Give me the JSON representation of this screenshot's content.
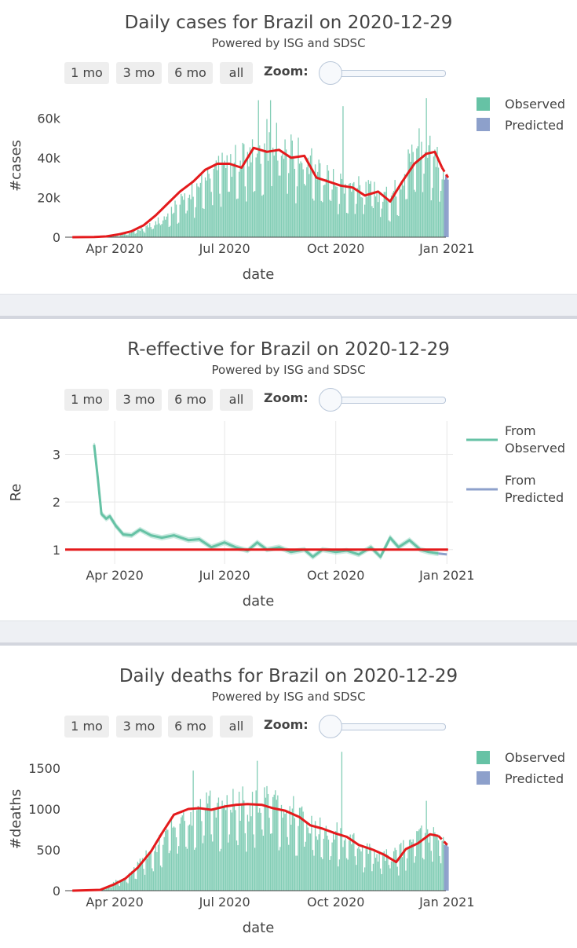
{
  "controls": {
    "buttons": [
      "1 mo",
      "3 mo",
      "6 mo",
      "all"
    ],
    "zoom_label": "Zoom:"
  },
  "colors": {
    "observed": "#66c2a5",
    "predicted": "#8da0cb",
    "trend": "#e41a1c"
  },
  "chart_data": [
    {
      "type": "bar",
      "title": "Daily cases for Brazil on 2020-12-29",
      "subtitle": "Powered by ISG and SDSC",
      "xlabel": "date",
      "ylabel": "#cases",
      "x_ticks": [
        "Apr 2020",
        "Jul 2020",
        "Oct 2020",
        "Jan 2021"
      ],
      "y_ticks": [
        "0",
        "20k",
        "40k",
        "60k"
      ],
      "y_tick_values": [
        0,
        20000,
        40000,
        60000
      ],
      "xlim": [
        "2020-02-20",
        "2021-01-06"
      ],
      "ylim": [
        0,
        72000
      ],
      "legend": {
        "position": "top-right",
        "entries": [
          "Observed",
          "Predicted"
        ]
      },
      "series": [
        {
          "name": "Observed",
          "kind": "bar",
          "x": [
            "2020-02-26",
            "2020-03-15",
            "2020-03-25",
            "2020-04-05",
            "2020-04-15",
            "2020-04-25",
            "2020-05-05",
            "2020-05-15",
            "2020-05-25",
            "2020-06-05",
            "2020-06-15",
            "2020-06-25",
            "2020-07-05",
            "2020-07-15",
            "2020-07-25",
            "2020-08-05",
            "2020-08-15",
            "2020-08-25",
            "2020-09-05",
            "2020-09-15",
            "2020-09-25",
            "2020-10-05",
            "2020-10-15",
            "2020-10-25",
            "2020-11-05",
            "2020-11-15",
            "2020-11-25",
            "2020-12-05",
            "2020-12-15",
            "2020-12-22",
            "2020-12-28"
          ],
          "values": [
            0,
            100,
            300,
            1000,
            2500,
            4500,
            7000,
            12000,
            17000,
            25000,
            28000,
            33000,
            38000,
            38000,
            42000,
            48000,
            46000,
            43000,
            40000,
            35000,
            30000,
            28000,
            26000,
            24000,
            22000,
            20000,
            30000,
            45000,
            50000,
            40000,
            30000
          ],
          "peaks": [
            {
              "x": "2020-07-29",
              "value": 69000
            },
            {
              "x": "2020-08-08",
              "value": 69000
            },
            {
              "x": "2020-10-07",
              "value": 66000
            },
            {
              "x": "2020-12-15",
              "value": 70000
            }
          ]
        },
        {
          "name": "Predicted",
          "kind": "bar",
          "x": [
            "2020-12-30",
            "2020-12-31",
            "2021-01-01",
            "2021-01-02"
          ],
          "values": [
            29000,
            31000,
            30000,
            29000
          ]
        },
        {
          "name": "Trend",
          "kind": "line",
          "x": [
            "2020-02-26",
            "2020-03-15",
            "2020-03-25",
            "2020-04-05",
            "2020-04-15",
            "2020-04-25",
            "2020-05-05",
            "2020-05-15",
            "2020-05-25",
            "2020-06-05",
            "2020-06-15",
            "2020-06-25",
            "2020-07-05",
            "2020-07-15",
            "2020-07-25",
            "2020-08-05",
            "2020-08-15",
            "2020-08-25",
            "2020-09-05",
            "2020-09-15",
            "2020-09-25",
            "2020-10-05",
            "2020-10-15",
            "2020-10-25",
            "2020-11-05",
            "2020-11-15",
            "2020-11-25",
            "2020-12-05",
            "2020-12-15",
            "2020-12-22",
            "2020-12-28",
            "2021-01-02"
          ],
          "values": [
            0,
            100,
            400,
            1500,
            3000,
            6000,
            11000,
            17000,
            23000,
            28000,
            34000,
            37000,
            37000,
            35000,
            45000,
            43000,
            44000,
            40000,
            41000,
            30000,
            28000,
            26000,
            25000,
            21000,
            23000,
            18000,
            28000,
            37000,
            42000,
            43000,
            35000,
            30000
          ]
        }
      ]
    },
    {
      "type": "line",
      "title": "R-effective for Brazil on 2020-12-29",
      "subtitle": "Powered by ISG and SDSC",
      "xlabel": "date",
      "ylabel": "Re",
      "x_ticks": [
        "Apr 2020",
        "Jul 2020",
        "Oct 2020",
        "Jan 2021"
      ],
      "y_ticks": [
        "1",
        "2",
        "3"
      ],
      "y_tick_values": [
        1,
        2,
        3
      ],
      "xlim": [
        "2020-02-20",
        "2021-01-06"
      ],
      "ylim": [
        0.7,
        3.7
      ],
      "grid": true,
      "legend": {
        "position": "top-right",
        "entries": [
          "From Observed",
          "From Predicted"
        ]
      },
      "series": [
        {
          "name": "From Observed",
          "x": [
            "2020-03-15",
            "2020-03-18",
            "2020-03-21",
            "2020-03-25",
            "2020-03-28",
            "2020-04-02",
            "2020-04-08",
            "2020-04-15",
            "2020-04-22",
            "2020-05-01",
            "2020-05-10",
            "2020-05-20",
            "2020-06-01",
            "2020-06-10",
            "2020-06-20",
            "2020-07-01",
            "2020-07-10",
            "2020-07-20",
            "2020-07-28",
            "2020-08-05",
            "2020-08-15",
            "2020-08-25",
            "2020-09-05",
            "2020-09-12",
            "2020-09-20",
            "2020-10-01",
            "2020-10-10",
            "2020-10-20",
            "2020-10-30",
            "2020-11-07",
            "2020-11-15",
            "2020-11-22",
            "2020-12-01",
            "2020-12-10",
            "2020-12-17",
            "2020-12-25"
          ],
          "values": [
            3.2,
            2.5,
            1.75,
            1.65,
            1.7,
            1.5,
            1.32,
            1.3,
            1.42,
            1.3,
            1.25,
            1.3,
            1.2,
            1.22,
            1.05,
            1.15,
            1.05,
            0.98,
            1.15,
            1.0,
            1.05,
            0.95,
            1.0,
            0.85,
            1.0,
            0.95,
            0.98,
            0.9,
            1.05,
            0.85,
            1.25,
            1.05,
            1.2,
            1.0,
            0.95,
            0.92
          ]
        },
        {
          "name": "From Predicted",
          "x": [
            "2020-12-25",
            "2021-01-01"
          ],
          "values": [
            0.92,
            0.9
          ]
        },
        {
          "name": "Threshold",
          "x": [
            "2020-02-20",
            "2021-01-02"
          ],
          "values": [
            1,
            1
          ]
        }
      ]
    },
    {
      "type": "bar",
      "title": "Daily deaths for Brazil on 2020-12-29",
      "subtitle": "Powered by ISG and SDSC",
      "xlabel": "date",
      "ylabel": "#deaths",
      "x_ticks": [
        "Apr 2020",
        "Jul 2020",
        "Oct 2020",
        "Jan 2021"
      ],
      "y_ticks": [
        "0",
        "500",
        "1000",
        "1500"
      ],
      "y_tick_values": [
        0,
        500,
        1000,
        1500
      ],
      "xlim": [
        "2020-02-20",
        "2021-01-06"
      ],
      "ylim": [
        0,
        1750
      ],
      "legend": {
        "position": "top-right",
        "entries": [
          "Observed",
          "Predicted"
        ]
      },
      "series": [
        {
          "name": "Observed",
          "kind": "bar",
          "x": [
            "2020-02-26",
            "2020-03-20",
            "2020-04-01",
            "2020-04-10",
            "2020-04-20",
            "2020-05-01",
            "2020-05-10",
            "2020-05-20",
            "2020-06-01",
            "2020-06-10",
            "2020-06-20",
            "2020-07-01",
            "2020-07-10",
            "2020-07-20",
            "2020-08-01",
            "2020-08-10",
            "2020-08-20",
            "2020-09-01",
            "2020-09-10",
            "2020-09-20",
            "2020-10-01",
            "2020-10-10",
            "2020-10-20",
            "2020-11-01",
            "2020-11-10",
            "2020-11-20",
            "2020-12-01",
            "2020-12-10",
            "2020-12-20",
            "2020-12-28"
          ],
          "values": [
            0,
            10,
            100,
            150,
            300,
            450,
            600,
            800,
            900,
            1000,
            1000,
            1000,
            1050,
            1050,
            1050,
            1000,
            980,
            900,
            800,
            750,
            700,
            650,
            550,
            450,
            400,
            450,
            550,
            650,
            700,
            550
          ],
          "peaks": [
            {
              "x": "2020-06-05",
              "value": 1470
            },
            {
              "x": "2020-07-28",
              "value": 1590
            },
            {
              "x": "2020-10-06",
              "value": 1700
            },
            {
              "x": "2020-12-15",
              "value": 1100
            }
          ]
        },
        {
          "name": "Predicted",
          "kind": "bar",
          "x": [
            "2020-12-30",
            "2020-12-31",
            "2021-01-01",
            "2021-01-02"
          ],
          "values": [
            560,
            580,
            560,
            540
          ]
        },
        {
          "name": "Trend",
          "kind": "line",
          "x": [
            "2020-02-26",
            "2020-03-20",
            "2020-04-01",
            "2020-04-10",
            "2020-04-20",
            "2020-05-01",
            "2020-05-10",
            "2020-05-20",
            "2020-06-01",
            "2020-06-10",
            "2020-06-20",
            "2020-07-01",
            "2020-07-10",
            "2020-07-20",
            "2020-08-01",
            "2020-08-10",
            "2020-08-20",
            "2020-09-01",
            "2020-09-10",
            "2020-09-20",
            "2020-10-01",
            "2020-10-10",
            "2020-10-20",
            "2020-11-01",
            "2020-11-10",
            "2020-11-20",
            "2020-11-28",
            "2020-12-08",
            "2020-12-18",
            "2020-12-25",
            "2021-01-02"
          ],
          "values": [
            0,
            10,
            80,
            150,
            280,
            480,
            700,
            930,
            1000,
            1010,
            990,
            1030,
            1050,
            1060,
            1050,
            1010,
            980,
            900,
            800,
            760,
            700,
            660,
            560,
            500,
            440,
            350,
            510,
            580,
            690,
            670,
            550
          ]
        }
      ]
    }
  ]
}
